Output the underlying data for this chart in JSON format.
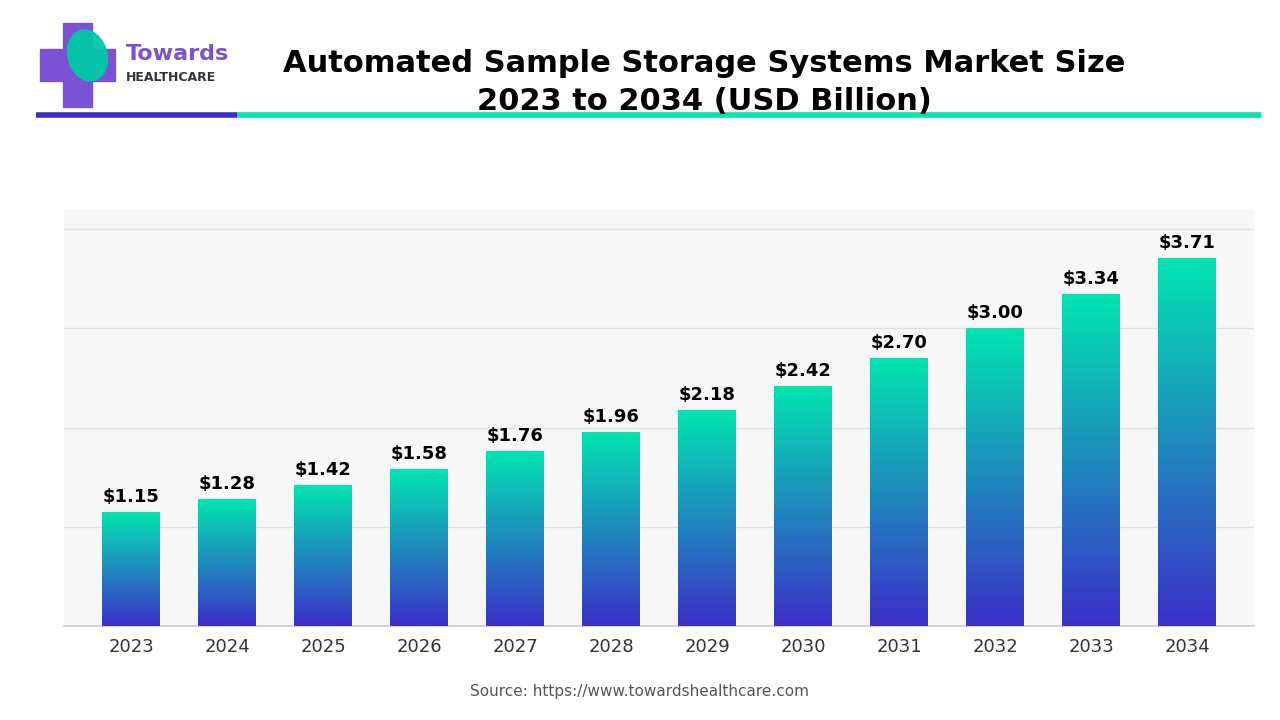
{
  "title_line1": "Automated Sample Storage Systems Market Size",
  "title_line2": "2023 to 2034 (USD Billion)",
  "years": [
    2023,
    2024,
    2025,
    2026,
    2027,
    2028,
    2029,
    2030,
    2031,
    2032,
    2033,
    2034
  ],
  "values": [
    1.15,
    1.28,
    1.42,
    1.58,
    1.76,
    1.96,
    2.18,
    2.42,
    2.7,
    3.0,
    3.34,
    3.71
  ],
  "labels": [
    "$1.15",
    "$1.28",
    "$1.42",
    "$1.58",
    "$1.76",
    "$1.96",
    "$2.18",
    "$2.42",
    "$2.70",
    "$3.00",
    "$3.34",
    "$3.71"
  ],
  "bar_color_top": "#00E5B0",
  "bar_color_bottom": "#3B2FC9",
  "ylim": [
    0,
    4.2
  ],
  "source_text": "Source: https://www.towardshealthcare.com",
  "bg_color": "#ffffff",
  "plot_bg_color": "#f7f7f7",
  "grid_color": "#e0e0e0",
  "title_color": "#000000",
  "label_color": "#000000",
  "tick_color": "#333333",
  "logo_text_towards": "Towards",
  "logo_text_healthcare": "HEALTHCARE",
  "logo_purple": "#7B52D3",
  "logo_teal": "#00C9A7",
  "separator_purple": "#3B2FC9",
  "separator_teal": "#00E5B0",
  "title_fontsize": 22,
  "label_fontsize": 13,
  "tick_fontsize": 13,
  "source_fontsize": 11
}
